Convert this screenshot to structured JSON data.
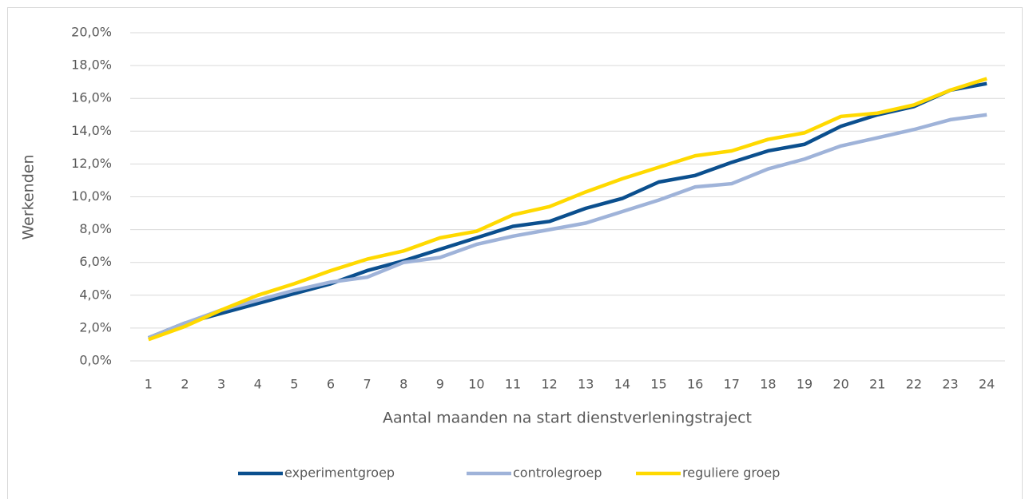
{
  "chart_data": {
    "type": "line",
    "y_label": "Werkenden",
    "x_label": "Aantal maanden na start dienstverleningstraject",
    "categories": [
      "1",
      "2",
      "3",
      "4",
      "5",
      "6",
      "7",
      "8",
      "9",
      "10",
      "11",
      "12",
      "13",
      "14",
      "15",
      "16",
      "17",
      "18",
      "19",
      "20",
      "21",
      "22",
      "23",
      "24"
    ],
    "series": [
      {
        "name": "experimentgroep",
        "color": "#0b4f8e",
        "values": [
          1.4,
          2.3,
          2.9,
          3.5,
          4.1,
          4.7,
          5.5,
          6.1,
          6.8,
          7.5,
          8.2,
          8.5,
          9.3,
          9.9,
          10.9,
          11.3,
          12.1,
          12.8,
          13.2,
          14.3,
          15.0,
          15.5,
          16.5,
          16.9
        ]
      },
      {
        "name": "controlegroep",
        "color": "#9fb3d9",
        "values": [
          1.4,
          2.3,
          3.1,
          3.7,
          4.3,
          4.8,
          5.1,
          6.0,
          6.3,
          7.1,
          7.6,
          8.0,
          8.4,
          9.1,
          9.8,
          10.6,
          10.8,
          11.7,
          12.3,
          13.1,
          13.6,
          14.1,
          14.7,
          15.0
        ]
      },
      {
        "name": "reguliere groep",
        "color": "#ffd900",
        "values": [
          1.3,
          2.1,
          3.1,
          4.0,
          4.7,
          5.5,
          6.2,
          6.7,
          7.5,
          7.9,
          8.9,
          9.4,
          10.3,
          11.1,
          11.8,
          12.5,
          12.8,
          13.5,
          13.9,
          14.9,
          15.1,
          15.6,
          16.5,
          17.2
        ]
      }
    ],
    "ylim": [
      0,
      20
    ],
    "yticks": [
      {
        "value": 0,
        "label": "0,0%"
      },
      {
        "value": 2,
        "label": "2,0%"
      },
      {
        "value": 4,
        "label": "4,0%"
      },
      {
        "value": 6,
        "label": "6,0%"
      },
      {
        "value": 8,
        "label": "8,0%"
      },
      {
        "value": 10,
        "label": "10,0%"
      },
      {
        "value": 12,
        "label": "12,0%"
      },
      {
        "value": 14,
        "label": "14,0%"
      },
      {
        "value": 16,
        "label": "16,0%"
      },
      {
        "value": 18,
        "label": "18,0%"
      },
      {
        "value": 20,
        "label": "20,0%"
      }
    ],
    "grid": true,
    "legend": "bottom"
  }
}
